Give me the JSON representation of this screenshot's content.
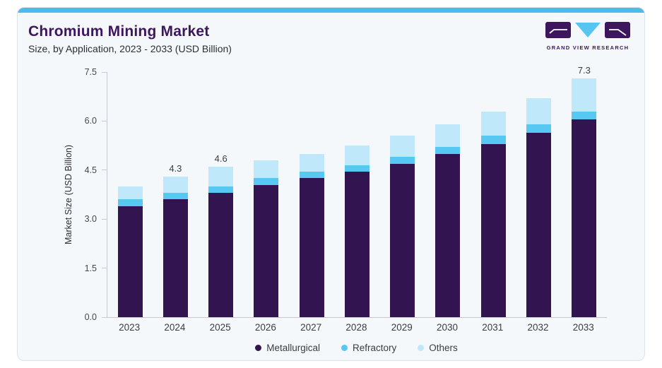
{
  "header": {
    "title": "Chromium Mining Market",
    "subtitle": "Size, by Application, 2023 - 2033 (USD Billion)",
    "logo_text": "GRAND VIEW RESEARCH"
  },
  "colors": {
    "accent_bar": "#4cbbec",
    "brand_purple": "#3d165e",
    "card_background": "#f4f8fb",
    "axis_line": "#c4cad1"
  },
  "chart_data": {
    "type": "bar",
    "stacked": true,
    "title": "Chromium Mining Market Size, by Application, 2023 - 2033 (USD Billion)",
    "categories": [
      "2023",
      "2024",
      "2025",
      "2026",
      "2027",
      "2028",
      "2029",
      "2030",
      "2031",
      "2032",
      "2033"
    ],
    "series": [
      {
        "name": "Metallurgical",
        "color": "#321450",
        "values": [
          3.4,
          3.6,
          3.8,
          4.05,
          4.25,
          4.45,
          4.7,
          5.0,
          5.3,
          5.65,
          6.05
        ]
      },
      {
        "name": "Refractory",
        "color": "#56c8f2",
        "values": [
          0.2,
          0.2,
          0.2,
          0.2,
          0.2,
          0.2,
          0.2,
          0.2,
          0.25,
          0.25,
          0.25
        ]
      },
      {
        "name": "Others",
        "color": "#bfe9fb",
        "values": [
          0.4,
          0.5,
          0.6,
          0.55,
          0.55,
          0.6,
          0.65,
          0.7,
          0.75,
          0.8,
          1.0
        ]
      }
    ],
    "totals": [
      4.0,
      4.3,
      4.6,
      4.8,
      5.0,
      5.25,
      5.55,
      5.9,
      6.3,
      6.7,
      7.3
    ],
    "bar_labels": [
      "",
      "4.3",
      "4.6",
      "",
      "",
      "",
      "",
      "",
      "",
      "",
      "7.3"
    ],
    "xlabel": "",
    "ylabel": "Market Size (USD Billion)",
    "yticks": [
      "0.0",
      "1.5",
      "3.0",
      "4.5",
      "6.0",
      "7.5"
    ],
    "ylim": [
      0,
      7.5
    ],
    "grid": false,
    "legend_position": "bottom"
  }
}
